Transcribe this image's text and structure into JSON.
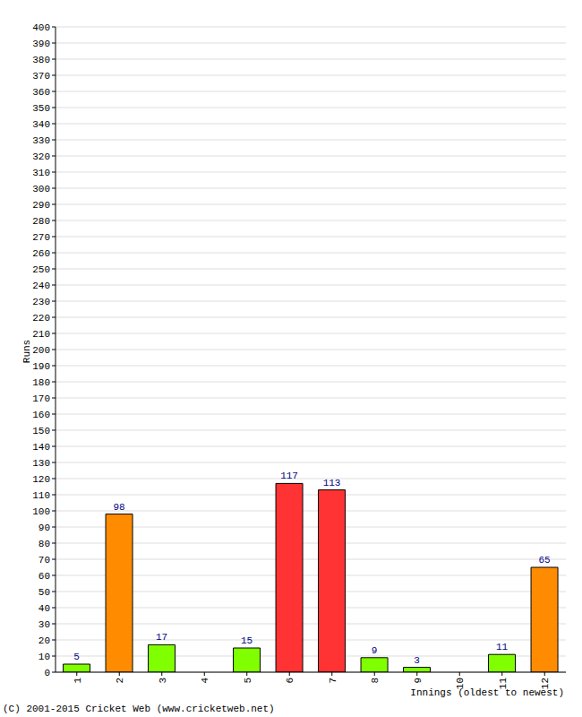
{
  "chart_data": {
    "type": "bar",
    "x_label": "Innings (oldest to newest)",
    "y_label": "Runs",
    "annotation": "(C) 2001-2015 Cricket Web (www.cricketweb.net)",
    "categories": [
      "1",
      "2",
      "3",
      "4",
      "5",
      "6",
      "7",
      "8",
      "9",
      "10",
      "11",
      "12"
    ],
    "values": [
      5,
      98,
      17,
      0,
      15,
      117,
      113,
      9,
      3,
      0,
      11,
      65
    ],
    "colors": [
      "#80ff00",
      "#ff8c00",
      "#80ff00",
      "#80ff00",
      "#80ff00",
      "#ff3333",
      "#ff3333",
      "#80ff00",
      "#80ff00",
      "#80ff00",
      "#80ff00",
      "#ff8c00"
    ],
    "ylim": [
      0,
      400
    ],
    "yticks": [
      0,
      10,
      20,
      30,
      40,
      50,
      60,
      70,
      80,
      90,
      100,
      110,
      120,
      130,
      140,
      150,
      160,
      170,
      180,
      190,
      200,
      210,
      220,
      230,
      240,
      250,
      260,
      270,
      280,
      290,
      300,
      310,
      320,
      330,
      340,
      350,
      360,
      370,
      380,
      390,
      400
    ],
    "grid": true,
    "data_labels": true
  }
}
